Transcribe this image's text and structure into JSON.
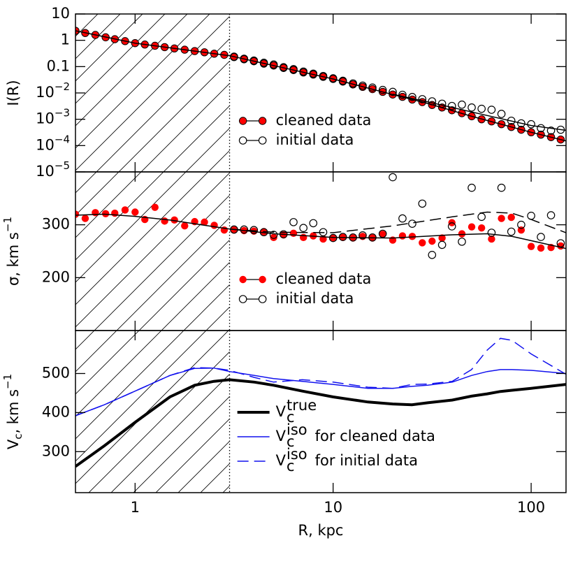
{
  "chart_data": [
    {
      "type": "scatter",
      "xscale": "log",
      "ylog": true,
      "xlim": [
        0.5,
        150
      ],
      "xticks": [
        1,
        10,
        100
      ],
      "xticklabels": false,
      "ylim": [
        1e-05,
        10
      ],
      "yticks": [
        10,
        1,
        0.1,
        {
          "value": 0.01,
          "label": "10^−2"
        },
        {
          "value": 0.001,
          "label": "10^−3"
        },
        {
          "value": 0.0001,
          "label": "10^−4"
        },
        {
          "value": 1e-05,
          "label": "10^−5"
        }
      ],
      "ylabel": "I(R)",
      "excluded_region_max_r": 3,
      "legend": "lower center",
      "series": [
        {
          "name": "cleaned data",
          "kind": "filled",
          "color": "#ff0000",
          "edgecolor": "#000000",
          "x": [
            0.5,
            0.56,
            0.63,
            0.71,
            0.79,
            0.89,
            1,
            1.12,
            1.26,
            1.41,
            1.58,
            1.78,
            2,
            2.24,
            2.51,
            2.82,
            3.16,
            3.55,
            3.98,
            4.47,
            5.01,
            5.62,
            6.31,
            7.08,
            7.94,
            8.91,
            10,
            11.2,
            12.6,
            14.1,
            15.8,
            17.8,
            20,
            22.4,
            25.1,
            28.2,
            31.6,
            35.5,
            39.8,
            44.7,
            50.1,
            56.2,
            63.1,
            70.8,
            79.4,
            89.1,
            100,
            112,
            126,
            141
          ],
          "values": [
            2.3,
            1.9,
            1.6,
            1.3,
            1.1,
            0.93,
            0.78,
            0.69,
            0.62,
            0.55,
            0.49,
            0.44,
            0.39,
            0.35,
            0.31,
            0.28,
            0.23,
            0.19,
            0.16,
            0.13,
            0.11,
            0.089,
            0.074,
            0.06,
            0.05,
            0.041,
            0.034,
            0.027,
            0.021,
            0.017,
            0.014,
            0.011,
            0.0087,
            0.0071,
            0.0056,
            0.0045,
            0.0035,
            0.0028,
            0.0022,
            0.0017,
            0.0013,
            0.001,
            0.00083,
            0.00065,
            0.00051,
            0.0004,
            0.00032,
            0.00026,
            0.00021,
            0.00017
          ]
        },
        {
          "name": "initial data",
          "kind": "open",
          "color": "#000000",
          "x": [
            3.16,
            3.55,
            3.98,
            4.47,
            5.01,
            5.62,
            6.31,
            7.08,
            7.94,
            8.91,
            10,
            11.2,
            12.6,
            14.1,
            15.8,
            17.8,
            20,
            22.4,
            25.1,
            28.2,
            31.6,
            35.5,
            39.8,
            44.7,
            50.1,
            56.2,
            63.1,
            70.8,
            79.4,
            89.1,
            100,
            112,
            126,
            141
          ],
          "values": [
            0.24,
            0.2,
            0.17,
            0.14,
            0.12,
            0.095,
            0.08,
            0.065,
            0.054,
            0.044,
            0.036,
            0.029,
            0.023,
            0.019,
            0.016,
            0.013,
            0.011,
            0.0085,
            0.007,
            0.0058,
            0.0048,
            0.0039,
            0.0032,
            0.0036,
            0.0028,
            0.0025,
            0.0023,
            0.0016,
            0.00088,
            0.0007,
            0.00065,
            0.00046,
            0.00037,
            0.0004
          ]
        },
        {
          "kind": "solid",
          "color": "#000000",
          "linewidth": 1.5,
          "x": [
            0.5,
            1,
            2,
            3,
            5,
            10,
            20,
            30,
            50,
            100,
            150
          ],
          "values": [
            2.3,
            0.78,
            0.39,
            0.26,
            0.11,
            0.034,
            0.0087,
            0.004,
            0.0013,
            0.00032,
            0.00015
          ]
        },
        {
          "kind": "solid",
          "color": "#000000",
          "linewidth": 1.5,
          "x": [
            20,
            30,
            50,
            100,
            150
          ],
          "values": [
            0.0089,
            0.0046,
            0.0019,
            0.00058,
            0.00038
          ]
        }
      ]
    },
    {
      "type": "scatter",
      "xscale": "log",
      "xlim": [
        0.5,
        150
      ],
      "xticks": [
        1,
        10,
        100
      ],
      "xticklabels": false,
      "ylim": [
        100,
        400
      ],
      "yticks": [
        200,
        300
      ],
      "ylabel": {
        "main": "σ, km s",
        "sup": "−1"
      },
      "excluded_region_max_r": 3,
      "legend": "lower center",
      "series": [
        {
          "name": "cleaned data",
          "kind": "filled",
          "color": "#ff0000",
          "x": [
            0.5,
            0.56,
            0.63,
            0.71,
            0.79,
            0.89,
            1,
            1.12,
            1.26,
            1.41,
            1.58,
            1.78,
            2,
            2.24,
            2.51,
            2.82,
            3.16,
            3.55,
            3.98,
            4.47,
            5.01,
            5.62,
            6.31,
            7.08,
            7.94,
            8.91,
            10,
            11.2,
            12.6,
            14.1,
            15.8,
            17.8,
            20,
            22.4,
            25.1,
            28.2,
            31.6,
            35.5,
            39.8,
            44.7,
            50.1,
            56.2,
            63.1,
            70.8,
            79.4,
            89.1,
            100,
            112,
            126,
            141
          ],
          "values": [
            320,
            312,
            323,
            321,
            322,
            328,
            324,
            310,
            333,
            307,
            309,
            298,
            306,
            305,
            299,
            290,
            290,
            289,
            288,
            287,
            276,
            281,
            284,
            276,
            279,
            273,
            275,
            276,
            275,
            278,
            275,
            282,
            271,
            279,
            278,
            266,
            269,
            275,
            304,
            283,
            296,
            294,
            273,
            312,
            314,
            290,
            259,
            256,
            257,
            260
          ]
        },
        {
          "name": "initial data",
          "kind": "open",
          "color": "#000000",
          "x": [
            3.16,
            3.55,
            3.98,
            4.47,
            5.01,
            5.62,
            6.31,
            7.08,
            7.94,
            8.91,
            10,
            11.2,
            12.6,
            14.1,
            15.8,
            17.8,
            20,
            22.4,
            25.1,
            28.2,
            31.6,
            35.5,
            39.8,
            44.7,
            50.1,
            56.2,
            63.1,
            70.8,
            79.4,
            89.1,
            100,
            112,
            126,
            141
          ],
          "values": [
            291,
            291,
            290,
            286,
            281,
            282,
            305,
            294,
            303,
            286,
            275,
            277,
            276,
            280,
            276,
            283,
            390,
            312,
            302,
            340,
            243,
            262,
            297,
            268,
            370,
            315,
            285,
            370,
            287,
            300,
            317,
            277,
            318,
            265
          ]
        },
        {
          "kind": "solid",
          "color": "#000000",
          "linewidth": 1.5,
          "x": [
            0.5,
            0.7,
            1,
            1.5,
            2,
            3,
            5,
            10,
            20,
            40,
            60,
            80,
            100,
            150
          ],
          "values": [
            318,
            320,
            316,
            309,
            302,
            292,
            283,
            276,
            275,
            281,
            283,
            278,
            270,
            255
          ]
        },
        {
          "kind": "dashed",
          "color": "#000000",
          "linewidth": 1.5,
          "x": [
            3,
            5,
            10,
            20,
            40,
            60,
            80,
            100,
            150
          ],
          "values": [
            292,
            286,
            285,
            298,
            315,
            324,
            322,
            310,
            285
          ]
        }
      ]
    },
    {
      "type": "line",
      "xscale": "log",
      "xlim": [
        0.5,
        150
      ],
      "xticks": [
        1,
        10,
        100
      ],
      "xlabel": "R, kpc",
      "ylim": [
        195,
        610
      ],
      "yticks": [
        300,
        400,
        500
      ],
      "ylabel": {
        "main": "V",
        "sub": "c",
        "rest": ", km s",
        "sup": "−1"
      },
      "excluded_region_max_r": 3,
      "legend": "lower center",
      "series": [
        {
          "name": "V",
          "name_sub": "c",
          "name_sup": "true",
          "kind": "solid",
          "color": "#000000",
          "linewidth": 4,
          "x": [
            0.5,
            0.7,
            1,
            1.5,
            2,
            2.5,
            3,
            4,
            5,
            7,
            10,
            15,
            20,
            25,
            30,
            40,
            50,
            60,
            70,
            80,
            100,
            150
          ],
          "values": [
            262,
            315,
            375,
            440,
            470,
            480,
            484,
            478,
            470,
            455,
            440,
            427,
            422,
            420,
            425,
            432,
            442,
            448,
            454,
            457,
            462,
            472
          ]
        },
        {
          "name": "V",
          "name_sub": "c",
          "name_sup": "iso",
          "name_rest": "for cleaned data",
          "kind": "solid",
          "color": "#1010ee",
          "linewidth": 1.5,
          "x": [
            0.5,
            0.7,
            1,
            1.5,
            2,
            2.5,
            3,
            4,
            5,
            7,
            10,
            15,
            20,
            25,
            30,
            40,
            50,
            60,
            70,
            80,
            100,
            150
          ],
          "values": [
            392,
            420,
            455,
            495,
            513,
            514,
            505,
            495,
            487,
            480,
            472,
            462,
            462,
            467,
            470,
            478,
            495,
            505,
            510,
            510,
            508,
            500
          ]
        },
        {
          "name": "V",
          "name_sub": "c",
          "name_sup": "iso",
          "name_rest": "for initial data",
          "kind": "dashed",
          "color": "#1010ee",
          "linewidth": 1.5,
          "x": [
            0.5,
            0.7,
            1,
            1.5,
            2,
            2.5,
            3,
            4,
            5,
            7,
            10,
            15,
            20,
            25,
            30,
            40,
            50,
            60,
            70,
            80,
            100,
            150
          ],
          "values": [
            392,
            420,
            455,
            495,
            515,
            514,
            508,
            490,
            478,
            484,
            478,
            465,
            462,
            472,
            473,
            480,
            510,
            560,
            590,
            585,
            550,
            498
          ]
        }
      ]
    }
  ]
}
